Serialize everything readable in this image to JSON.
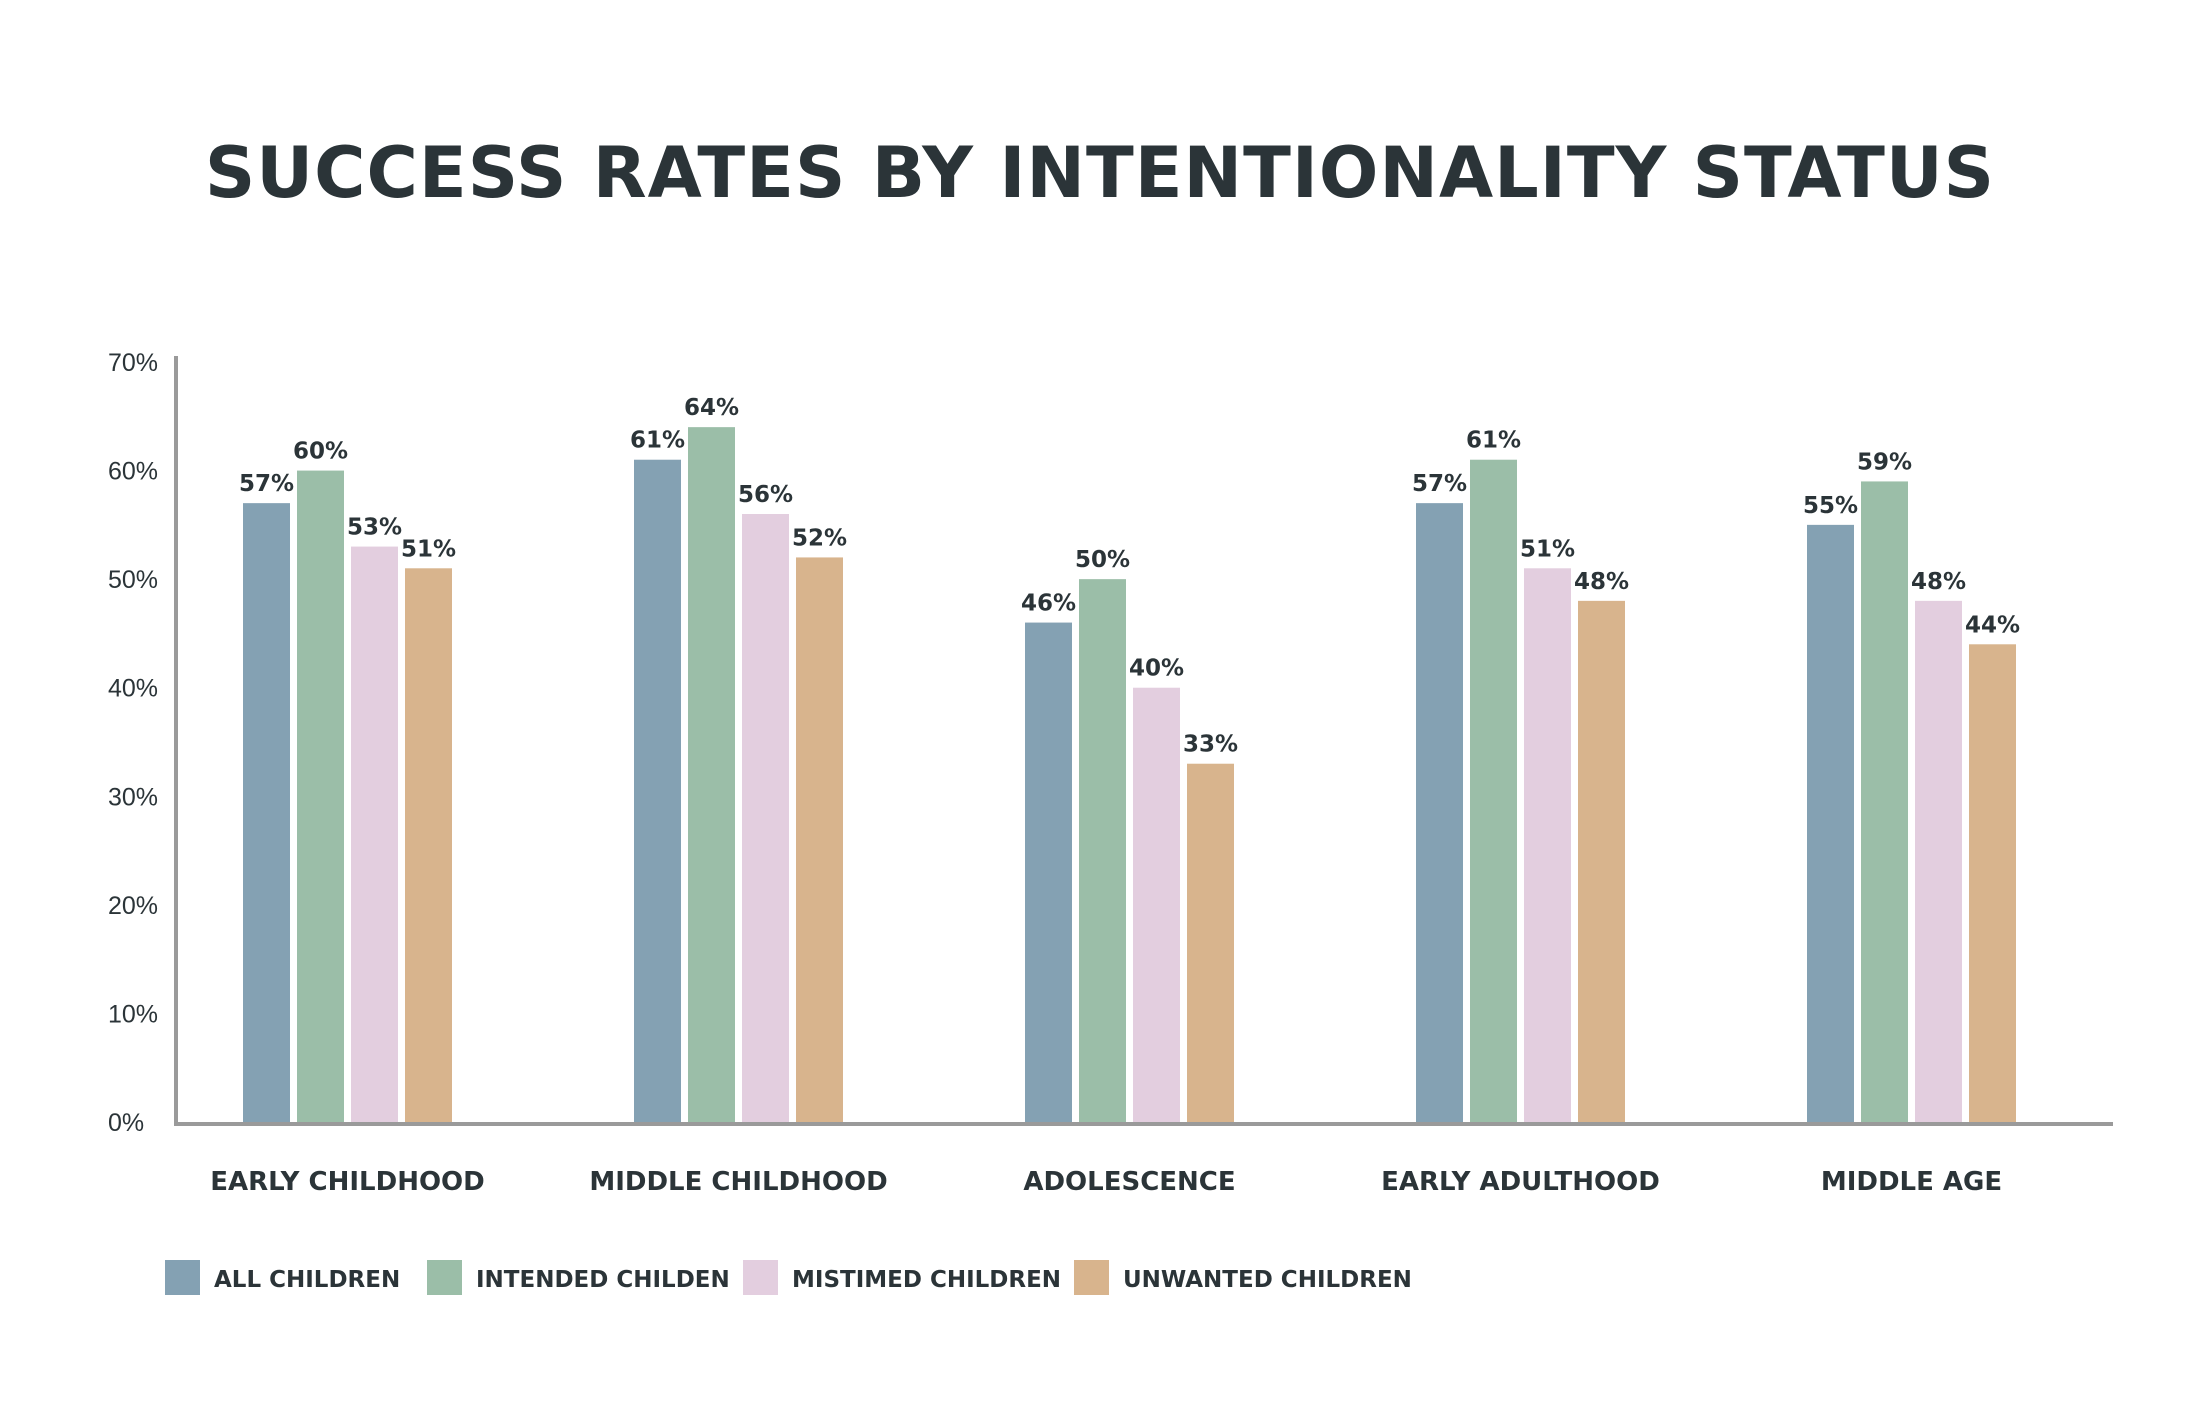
{
  "chart_data": {
    "type": "bar",
    "title": "SUCCESS RATES BY INTENTIONALITY STATUS",
    "categories": [
      "EARLY CHILDHOOD",
      "MIDDLE CHILDHOOD",
      "ADOLESCENCE",
      "EARLY ADULTHOOD",
      "MIDDLE AGE"
    ],
    "series": [
      {
        "name": "ALL CHILDREN",
        "color": "#84a1b3",
        "values": [
          57,
          61,
          46,
          57,
          55
        ],
        "labels": [
          "57%",
          "61%",
          "46%",
          "57%",
          "55%"
        ]
      },
      {
        "name": "INTENDED CHILDEN",
        "color": "#9bbea8",
        "values": [
          60,
          64,
          50,
          61,
          59
        ],
        "labels": [
          "60%",
          "64%",
          "50%",
          "61%",
          "59%"
        ]
      },
      {
        "name": "MISTIMED CHILDREN",
        "color": "#e3cedf",
        "values": [
          53,
          56,
          40,
          51,
          48
        ],
        "labels": [
          "53%",
          "56%",
          "40%",
          "51%",
          "48%"
        ]
      },
      {
        "name": "UNWANTED CHILDREN",
        "color": "#d8b48d",
        "values": [
          51,
          52,
          33,
          48,
          44
        ],
        "labels": [
          "51%",
          "52%",
          "33%",
          "48%",
          "44%"
        ]
      }
    ],
    "y_ticks": [
      "0%",
      "10%",
      "20%",
      "30%",
      "40%",
      "50%",
      "60%",
      "70%"
    ],
    "ylim": [
      0,
      70
    ],
    "grid": false,
    "legend_position": "bottom-left"
  }
}
